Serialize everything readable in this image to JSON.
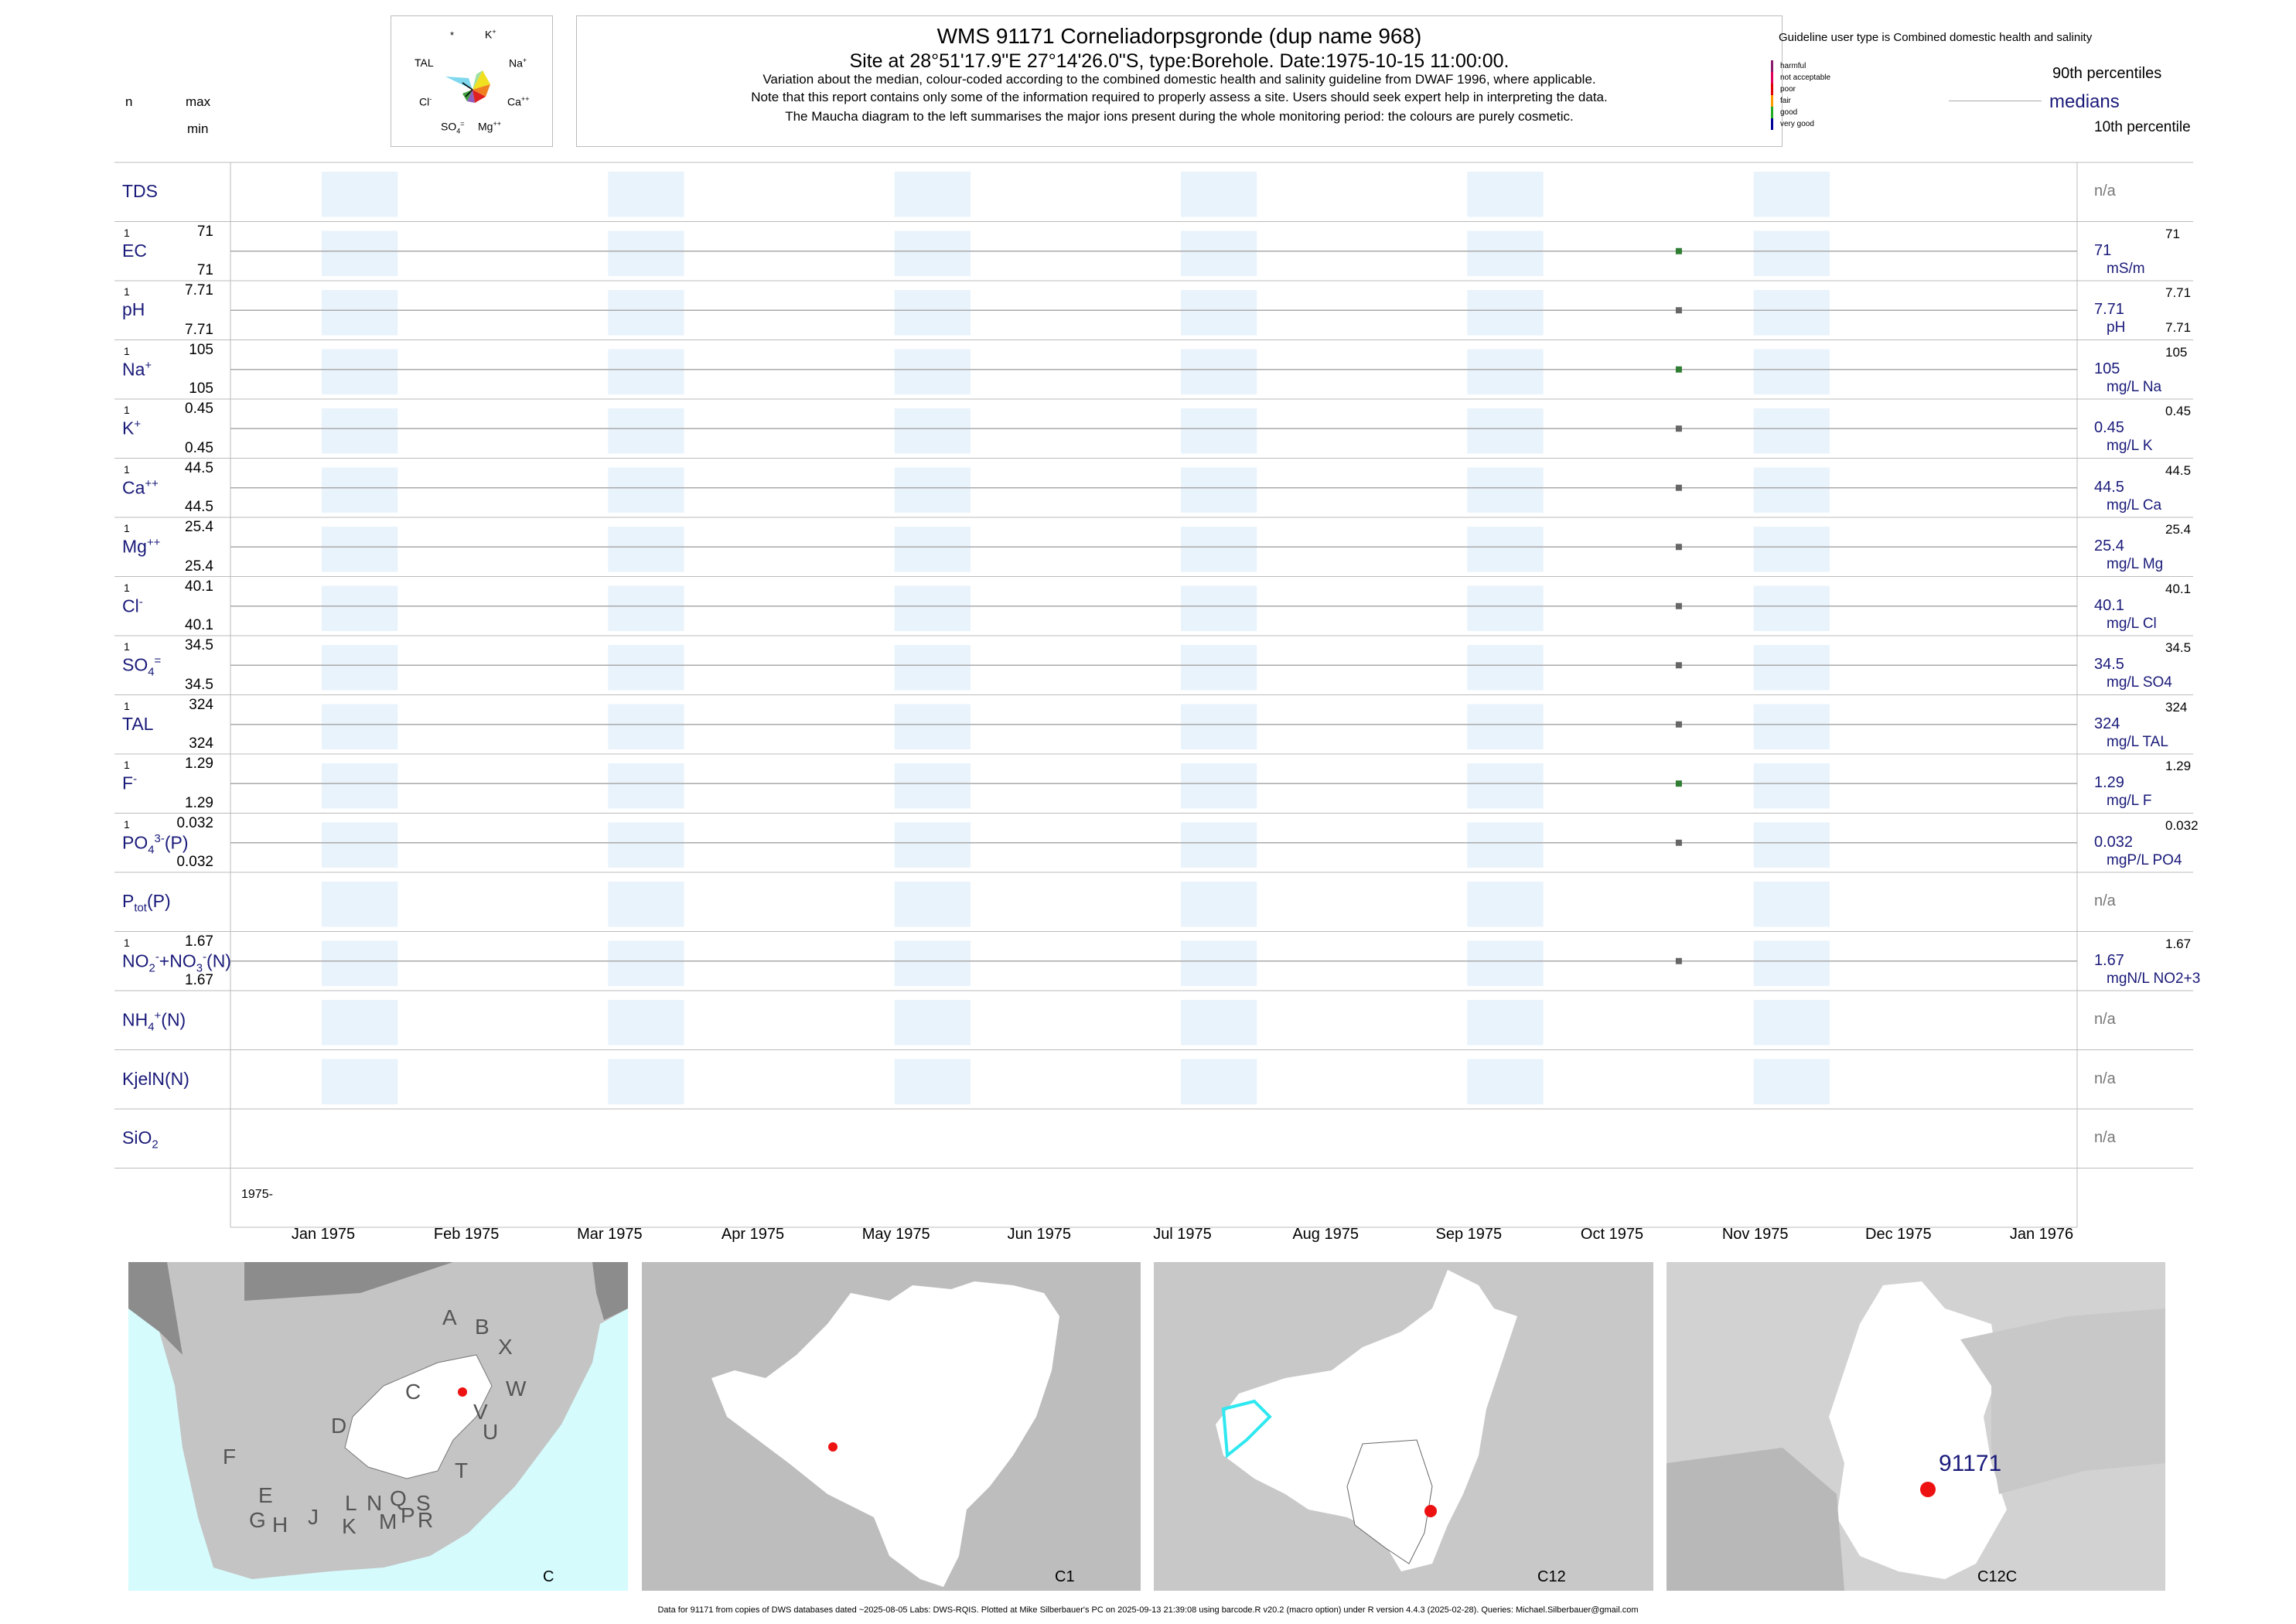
{
  "header": {
    "title": "WMS 91171  Corneliadorpsgronde (dup name 968)",
    "site": "Site at 28°51'17.9\"E 27°14'26.0\"S, type:Borehole. Date:1975-10-15 11:00:00.",
    "notes": [
      "Variation about the median,  colour-coded according to the combined domestic health and salinity guideline from DWAF 1996, where applicable.",
      "Note that this report contains only some of the information required to properly assess a site. Users should seek expert help in interpreting the data.",
      "The Maucha diagram to the left summarises the major ions present during the whole monitoring period: the colours are purely cosmetic."
    ]
  },
  "left_header": {
    "n": "n",
    "max": "max",
    "min": "min"
  },
  "maucha": {
    "labels": {
      "star": "*",
      "k": "K",
      "tal": "TAL",
      "na": "Na",
      "cl": "Cl",
      "ca": "Ca",
      "so4": "SO",
      "mg": "Mg"
    }
  },
  "legend": {
    "guideline_title": "Guideline user type is Combined domestic health and salinity",
    "classes": [
      {
        "label": "harmful",
        "color": "#8b1a6b"
      },
      {
        "label": "not acceptable",
        "color": "#e0005a"
      },
      {
        "label": "poor",
        "color": "#e00000"
      },
      {
        "label": "fair",
        "color": "#ff9900"
      },
      {
        "label": "good",
        "color": "#22aa22"
      },
      {
        "label": "very good",
        "color": "#000099"
      }
    ],
    "p90": "90th percentiles",
    "medians": "medians",
    "p10": "10th percentile"
  },
  "chart_data": {
    "type": "scatter",
    "x_axis": {
      "start_label": "1975-",
      "ticks": [
        "Jan 1975",
        "Feb 1975",
        "Mar 1975",
        "Apr 1975",
        "May 1975",
        "Jun 1975",
        "Jul 1975",
        "Aug 1975",
        "Sep 1975",
        "Oct 1975",
        "Nov 1975",
        "Dec 1975",
        "Jan 1976"
      ]
    },
    "sample_date": "1975-10-15",
    "rows": [
      {
        "label": "TDS",
        "n": "",
        "max": "",
        "min": "",
        "value": null,
        "median": "n/a",
        "unit": "",
        "p90": "",
        "color": ""
      },
      {
        "label": "EC",
        "n": "1",
        "max": "71",
        "min": "71",
        "value": 71,
        "median": "71",
        "unit": "mS/m",
        "p90": "71",
        "color": "#2e7d32"
      },
      {
        "label": "pH",
        "n": "1",
        "max": "7.71",
        "min": "7.71",
        "value": 7.71,
        "median": "7.71",
        "unit": "pH",
        "p90": "7.71",
        "p10": "7.71",
        "color": "#666666"
      },
      {
        "label": "Na",
        "n": "1",
        "max": "105",
        "min": "105",
        "value": 105,
        "median": "105",
        "unit": "mg/L Na",
        "p90": "105",
        "color": "#2e7d32"
      },
      {
        "label": "K",
        "n": "1",
        "max": "0.45",
        "min": "0.45",
        "value": 0.45,
        "median": "0.45",
        "unit": "mg/L K",
        "p90": "0.45",
        "color": "#666666"
      },
      {
        "label": "Ca",
        "n": "1",
        "max": "44.5",
        "min": "44.5",
        "value": 44.5,
        "median": "44.5",
        "unit": "mg/L Ca",
        "p90": "44.5",
        "color": "#666666"
      },
      {
        "label": "Mg",
        "n": "1",
        "max": "25.4",
        "min": "25.4",
        "value": 25.4,
        "median": "25.4",
        "unit": "mg/L Mg",
        "p90": "25.4",
        "color": "#666666"
      },
      {
        "label": "Cl",
        "n": "1",
        "max": "40.1",
        "min": "40.1",
        "value": 40.1,
        "median": "40.1",
        "unit": "mg/L Cl",
        "p90": "40.1",
        "color": "#666666"
      },
      {
        "label": "SO",
        "n": "1",
        "max": "34.5",
        "min": "34.5",
        "value": 34.5,
        "median": "34.5",
        "unit": "mg/L SO4",
        "p90": "34.5",
        "color": "#666666"
      },
      {
        "label": "TAL",
        "n": "1",
        "max": "324",
        "min": "324",
        "value": 324,
        "median": "324",
        "unit": "mg/L TAL",
        "p90": "324",
        "color": "#666666"
      },
      {
        "label": "F",
        "n": "1",
        "max": "1.29",
        "min": "1.29",
        "value": 1.29,
        "median": "1.29",
        "unit": "mg/L F",
        "p90": "1.29",
        "color": "#2e7d32"
      },
      {
        "label": "PO",
        "n": "1",
        "max": "0.032",
        "min": "0.032",
        "value": 0.032,
        "median": "0.032",
        "unit": "mgP/L PO4",
        "p90": "0.032",
        "color": "#666666"
      },
      {
        "label": "P",
        "n": "",
        "max": "",
        "min": "",
        "value": null,
        "median": "n/a",
        "unit": "",
        "p90": "",
        "color": ""
      },
      {
        "label": "NO",
        "n": "1",
        "max": "1.67",
        "min": "1.67",
        "value": 1.67,
        "median": "1.67",
        "unit": "mgN/L NO2+3",
        "p90": "1.67",
        "color": "#666666"
      },
      {
        "label": "NH",
        "n": "",
        "max": "",
        "min": "",
        "value": null,
        "median": "n/a",
        "unit": "",
        "p90": "",
        "color": ""
      },
      {
        "label": "KjelN(N)",
        "n": "",
        "max": "",
        "min": "",
        "value": null,
        "median": "n/a",
        "unit": "",
        "p90": "",
        "color": ""
      },
      {
        "label": "SiO",
        "n": "",
        "max": "",
        "min": "",
        "value": null,
        "median": "n/a",
        "unit": "",
        "p90": "",
        "color": ""
      }
    ]
  },
  "maps": [
    {
      "caption": "C",
      "regions": [
        "A",
        "B",
        "X",
        "W",
        "C",
        "V",
        "U",
        "D",
        "T",
        "F",
        "E",
        "G",
        "H",
        "J",
        "K",
        "L",
        "N",
        "Q",
        "M",
        "P",
        "S",
        "R"
      ]
    },
    {
      "caption": "C1"
    },
    {
      "caption": "C12"
    },
    {
      "caption": "C12C",
      "site_label": "91171"
    }
  ],
  "footer": "Data for 91171 from copies of DWS databases dated ~2025-08-05 Labs: DWS-RQIS. Plotted at Mike Silberbauer's PC on 2025-09-13 21:39:08 using barcode.R v20.2 (macro option) under R version 4.4.3 (2025-02-28). Queries: Michael.Silberbauer@gmail.com"
}
